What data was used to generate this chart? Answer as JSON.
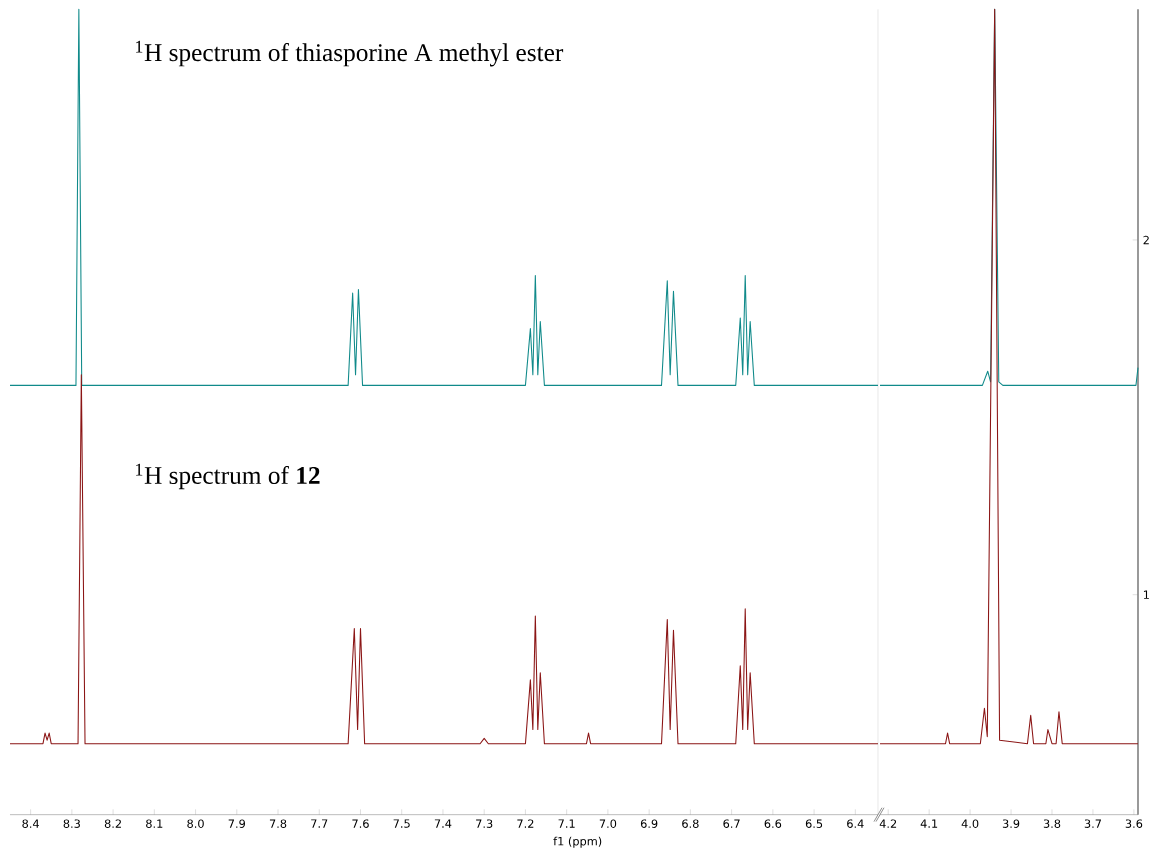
{
  "chart_data": [
    {
      "type": "line",
      "xlabel": "f1 (ppm)",
      "xlim": [
        8.45,
        6.345
      ],
      "ylim": [
        0.38,
        2.65
      ],
      "yticks": [
        1,
        2
      ],
      "tick_labels": "x",
      "marker": "none",
      "line_style": "solid",
      "xticks": [
        8.4,
        8.3,
        8.2,
        8.1,
        {
          "value": 8.0,
          "label": "8.0"
        },
        7.9,
        7.8,
        7.7,
        7.6,
        7.5,
        7.4,
        7.3,
        7.2,
        7.1,
        {
          "value": 7.0,
          "label": "7.0"
        },
        6.9,
        6.8,
        6.7,
        6.6,
        6.5,
        6.4
      ],
      "annotations": [
        "$^{1}$H spectrum of thiasporine A methyl ester",
        "$^{1}$H spectrum of **12**"
      ],
      "series": [
        {
          "color": "#108a8a",
          "x": [
            8.45,
            8.29,
            8.283,
            8.276,
            7.63,
            7.619,
            7.612,
            7.605,
            7.595,
            7.2,
            7.188,
            7.182,
            7.176,
            7.17,
            7.164,
            7.154,
            6.87,
            6.856,
            6.849,
            6.841,
            6.83,
            6.69,
            6.679,
            6.673,
            6.667,
            6.661,
            6.655,
            6.645,
            6.345
          ],
          "values": [
            1.59,
            1.59,
            2.65,
            1.59,
            1.59,
            1.85,
            1.62,
            1.86,
            1.59,
            1.59,
            1.75,
            1.62,
            1.9,
            1.62,
            1.77,
            1.59,
            1.59,
            1.885,
            1.62,
            1.855,
            1.59,
            1.59,
            1.78,
            1.62,
            1.9,
            1.62,
            1.77,
            1.59,
            1.59
          ]
        },
        {
          "color": "#8b1515",
          "x": [
            8.45,
            8.37,
            8.365,
            8.36,
            8.355,
            8.35,
            8.285,
            8.277,
            8.268,
            7.63,
            7.615,
            7.607,
            7.6,
            7.59,
            7.31,
            7.3,
            7.29,
            7.2,
            7.188,
            7.182,
            7.176,
            7.17,
            7.164,
            7.154,
            7.052,
            7.047,
            7.042,
            6.87,
            6.856,
            6.849,
            6.841,
            6.83,
            6.69,
            6.679,
            6.673,
            6.667,
            6.661,
            6.655,
            6.645,
            6.345
          ],
          "values": [
            0.58,
            0.58,
            0.61,
            0.59,
            0.61,
            0.58,
            0.58,
            1.62,
            0.58,
            0.58,
            0.905,
            0.62,
            0.905,
            0.58,
            0.58,
            0.595,
            0.58,
            0.58,
            0.76,
            0.62,
            0.94,
            0.62,
            0.78,
            0.58,
            0.58,
            0.61,
            0.58,
            0.58,
            0.93,
            0.62,
            0.9,
            0.58,
            0.58,
            0.8,
            0.62,
            0.96,
            0.62,
            0.78,
            0.58,
            0.58
          ]
        }
      ]
    },
    {
      "type": "line",
      "xlim": [
        4.22,
        3.59
      ],
      "ylim": [
        0.38,
        2.65
      ],
      "marker": "none",
      "line_style": "solid",
      "xticks": [
        4.2,
        4.1,
        {
          "value": 4.0,
          "label": "4.0"
        },
        3.9,
        3.8,
        3.7,
        3.6
      ],
      "yticks": [
        1,
        2
      ],
      "series": [
        {
          "color": "#108a8a",
          "x": [
            4.22,
            3.97,
            3.957,
            3.95,
            3.94,
            3.93,
            3.92,
            3.595,
            3.59
          ],
          "values": [
            1.59,
            1.59,
            1.63,
            1.6,
            2.65,
            1.6,
            1.59,
            1.59,
            1.64
          ]
        },
        {
          "color": "#8b1515",
          "x": [
            4.22,
            4.06,
            4.055,
            4.05,
            3.975,
            3.965,
            3.958,
            3.94,
            3.928,
            3.86,
            3.852,
            3.845,
            3.815,
            3.81,
            3.8,
            3.79,
            3.783,
            3.775,
            3.59
          ],
          "values": [
            0.58,
            0.58,
            0.61,
            0.58,
            0.58,
            0.68,
            0.6,
            2.65,
            0.59,
            0.58,
            0.66,
            0.58,
            0.58,
            0.62,
            0.58,
            0.58,
            0.67,
            0.58,
            0.58
          ]
        }
      ]
    }
  ]
}
